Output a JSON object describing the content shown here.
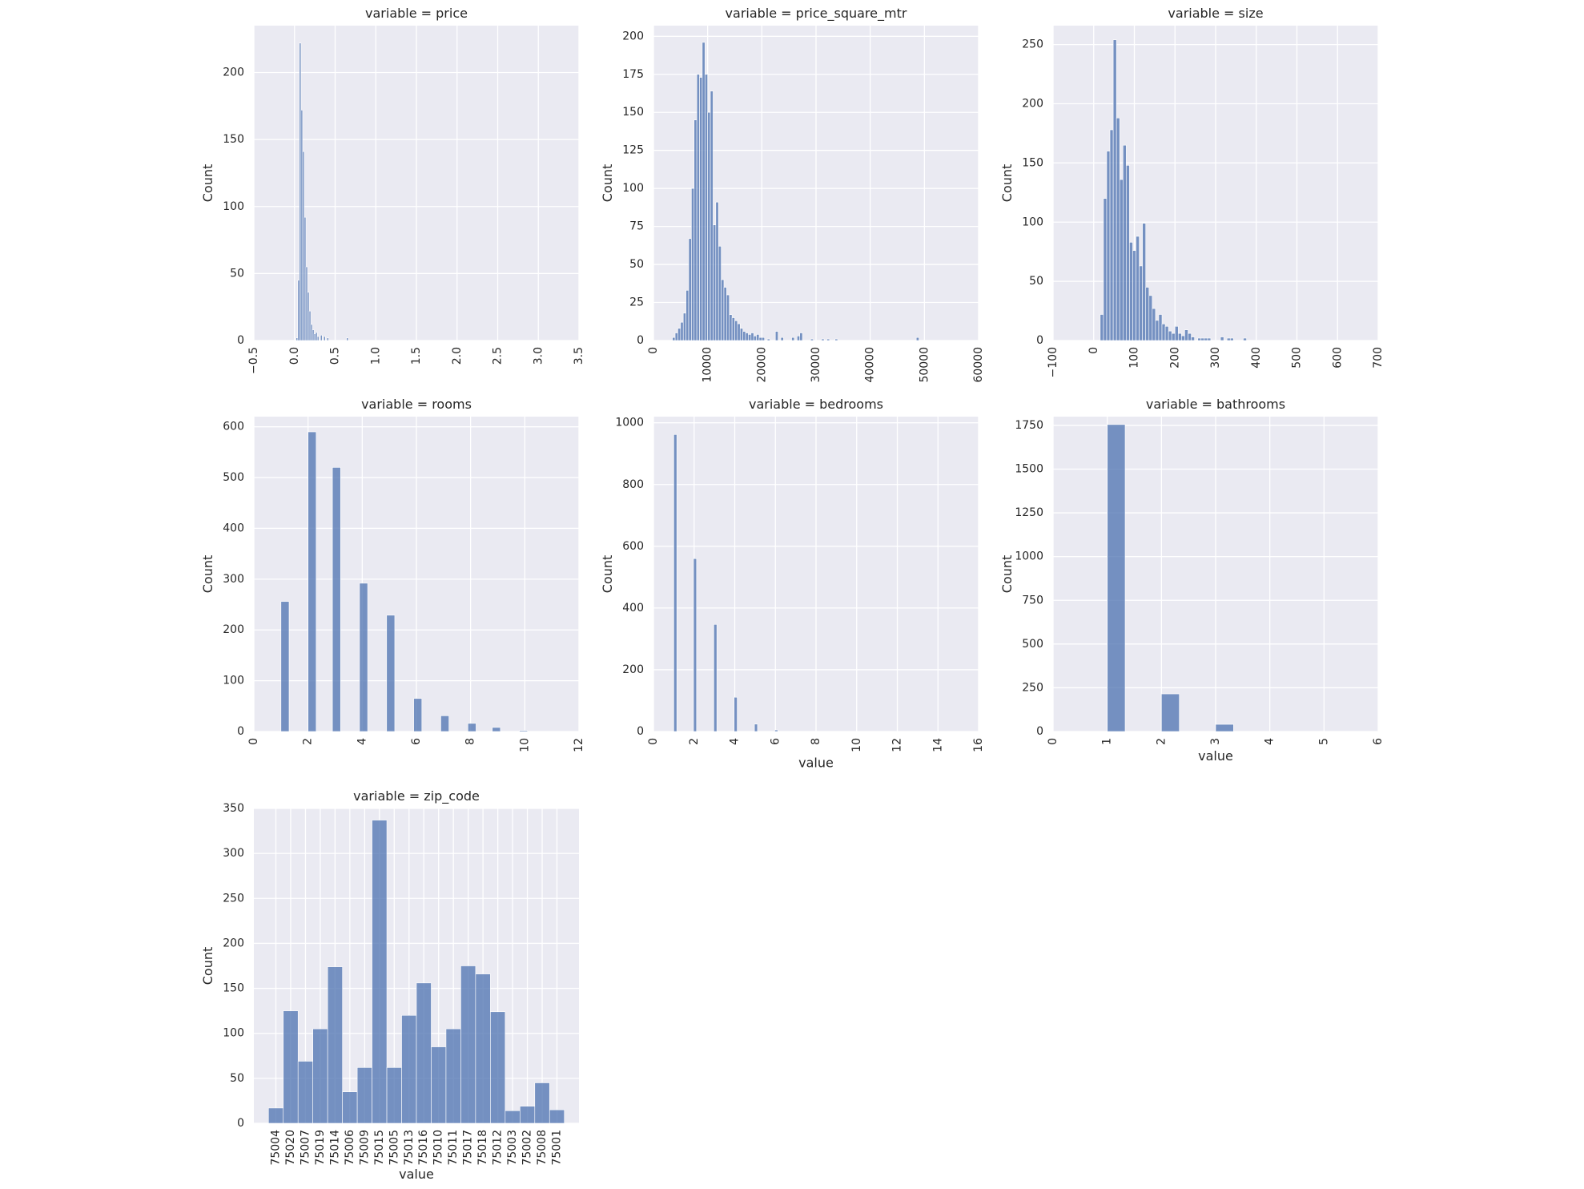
{
  "chart_data": [
    {
      "type": "histogram",
      "title": "variable = price",
      "xlabel": "",
      "ylabel": "Count",
      "xlim": [
        -0.5,
        3.5
      ],
      "ylim": [
        0,
        235
      ],
      "x_ticks": [
        "−0.5",
        "0.0",
        "0.5",
        "1.0",
        "1.5",
        "2.0",
        "2.5",
        "3.0",
        "3.5"
      ],
      "y_ticks": [
        "0",
        "50",
        "100",
        "150",
        "200"
      ],
      "grid": true,
      "bins": [
        {
          "x0": 0.02,
          "x1": 0.04,
          "count": 2
        },
        {
          "x0": 0.04,
          "x1": 0.06,
          "count": 45
        },
        {
          "x0": 0.06,
          "x1": 0.08,
          "count": 222
        },
        {
          "x0": 0.08,
          "x1": 0.1,
          "count": 172
        },
        {
          "x0": 0.1,
          "x1": 0.12,
          "count": 141
        },
        {
          "x0": 0.12,
          "x1": 0.14,
          "count": 92
        },
        {
          "x0": 0.14,
          "x1": 0.16,
          "count": 55
        },
        {
          "x0": 0.16,
          "x1": 0.18,
          "count": 36
        },
        {
          "x0": 0.18,
          "x1": 0.2,
          "count": 22
        },
        {
          "x0": 0.2,
          "x1": 0.22,
          "count": 12
        },
        {
          "x0": 0.22,
          "x1": 0.24,
          "count": 8
        },
        {
          "x0": 0.24,
          "x1": 0.26,
          "count": 5
        },
        {
          "x0": 0.26,
          "x1": 0.28,
          "count": 6
        },
        {
          "x0": 0.28,
          "x1": 0.3,
          "count": 3
        },
        {
          "x0": 0.32,
          "x1": 0.34,
          "count": 4
        },
        {
          "x0": 0.36,
          "x1": 0.38,
          "count": 3
        },
        {
          "x0": 0.4,
          "x1": 0.42,
          "count": 2
        },
        {
          "x0": 0.64,
          "x1": 0.66,
          "count": 2
        }
      ]
    },
    {
      "type": "histogram",
      "title": "variable = price_square_mtr",
      "xlabel": "",
      "ylabel": "Count",
      "xlim": [
        0,
        60000
      ],
      "ylim": [
        0,
        207
      ],
      "x_ticks": [
        "0",
        "10000",
        "20000",
        "30000",
        "40000",
        "50000",
        "60000"
      ],
      "y_ticks": [
        "0",
        "25",
        "50",
        "75",
        "100",
        "125",
        "150",
        "175",
        "200"
      ],
      "grid": true,
      "bins": [
        {
          "x0": 3500,
          "x1": 4000,
          "count": 2
        },
        {
          "x0": 4000,
          "x1": 4500,
          "count": 5
        },
        {
          "x0": 4500,
          "x1": 5000,
          "count": 8
        },
        {
          "x0": 5000,
          "x1": 5500,
          "count": 12
        },
        {
          "x0": 5500,
          "x1": 6000,
          "count": 18
        },
        {
          "x0": 6000,
          "x1": 6500,
          "count": 33
        },
        {
          "x0": 6500,
          "x1": 7000,
          "count": 67
        },
        {
          "x0": 7000,
          "x1": 7500,
          "count": 100
        },
        {
          "x0": 7500,
          "x1": 8000,
          "count": 145
        },
        {
          "x0": 8000,
          "x1": 8500,
          "count": 175
        },
        {
          "x0": 8500,
          "x1": 9000,
          "count": 173
        },
        {
          "x0": 9000,
          "x1": 9500,
          "count": 196
        },
        {
          "x0": 9500,
          "x1": 10000,
          "count": 175
        },
        {
          "x0": 10000,
          "x1": 10500,
          "count": 150
        },
        {
          "x0": 10500,
          "x1": 11000,
          "count": 164
        },
        {
          "x0": 11000,
          "x1": 11500,
          "count": 76
        },
        {
          "x0": 11500,
          "x1": 12000,
          "count": 91
        },
        {
          "x0": 12000,
          "x1": 12500,
          "count": 62
        },
        {
          "x0": 12500,
          "x1": 13000,
          "count": 40
        },
        {
          "x0": 13000,
          "x1": 13500,
          "count": 35
        },
        {
          "x0": 13500,
          "x1": 14000,
          "count": 30
        },
        {
          "x0": 14000,
          "x1": 14500,
          "count": 17
        },
        {
          "x0": 14500,
          "x1": 15000,
          "count": 15
        },
        {
          "x0": 15000,
          "x1": 15500,
          "count": 13
        },
        {
          "x0": 15500,
          "x1": 16000,
          "count": 11
        },
        {
          "x0": 16000,
          "x1": 16500,
          "count": 8
        },
        {
          "x0": 16500,
          "x1": 17000,
          "count": 6
        },
        {
          "x0": 17000,
          "x1": 17500,
          "count": 5
        },
        {
          "x0": 17500,
          "x1": 18000,
          "count": 4
        },
        {
          "x0": 18000,
          "x1": 18500,
          "count": 5
        },
        {
          "x0": 18500,
          "x1": 19000,
          "count": 3
        },
        {
          "x0": 19000,
          "x1": 19500,
          "count": 4
        },
        {
          "x0": 19500,
          "x1": 20000,
          "count": 2
        },
        {
          "x0": 20000,
          "x1": 20500,
          "count": 2
        },
        {
          "x0": 21000,
          "x1": 21500,
          "count": 1
        },
        {
          "x0": 22500,
          "x1": 23000,
          "count": 6
        },
        {
          "x0": 23500,
          "x1": 24000,
          "count": 2
        },
        {
          "x0": 25500,
          "x1": 26000,
          "count": 2
        },
        {
          "x0": 26500,
          "x1": 27000,
          "count": 3
        },
        {
          "x0": 27000,
          "x1": 27500,
          "count": 5
        },
        {
          "x0": 29000,
          "x1": 29500,
          "count": 1
        },
        {
          "x0": 31000,
          "x1": 31500,
          "count": 1
        },
        {
          "x0": 32000,
          "x1": 32500,
          "count": 1
        },
        {
          "x0": 33500,
          "x1": 34000,
          "count": 1
        },
        {
          "x0": 48500,
          "x1": 49000,
          "count": 2
        }
      ]
    },
    {
      "type": "histogram",
      "title": "variable = size",
      "xlabel": "",
      "ylabel": "Count",
      "xlim": [
        -100,
        700
      ],
      "ylim": [
        0,
        266
      ],
      "x_ticks": [
        "−100",
        "0",
        "100",
        "200",
        "300",
        "400",
        "500",
        "600",
        "700"
      ],
      "y_ticks": [
        "0",
        "50",
        "100",
        "150",
        "200",
        "250"
      ],
      "grid": true,
      "bins": [
        {
          "x0": 16,
          "x1": 24,
          "count": 22
        },
        {
          "x0": 24,
          "x1": 32,
          "count": 120
        },
        {
          "x0": 32,
          "x1": 40,
          "count": 160
        },
        {
          "x0": 40,
          "x1": 48,
          "count": 178
        },
        {
          "x0": 48,
          "x1": 56,
          "count": 254
        },
        {
          "x0": 56,
          "x1": 64,
          "count": 188
        },
        {
          "x0": 64,
          "x1": 72,
          "count": 136
        },
        {
          "x0": 72,
          "x1": 80,
          "count": 165
        },
        {
          "x0": 80,
          "x1": 88,
          "count": 148
        },
        {
          "x0": 88,
          "x1": 96,
          "count": 83
        },
        {
          "x0": 96,
          "x1": 104,
          "count": 76
        },
        {
          "x0": 104,
          "x1": 112,
          "count": 88
        },
        {
          "x0": 112,
          "x1": 120,
          "count": 63
        },
        {
          "x0": 120,
          "x1": 128,
          "count": 99
        },
        {
          "x0": 128,
          "x1": 136,
          "count": 45
        },
        {
          "x0": 136,
          "x1": 144,
          "count": 38
        },
        {
          "x0": 144,
          "x1": 152,
          "count": 27
        },
        {
          "x0": 152,
          "x1": 160,
          "count": 17
        },
        {
          "x0": 160,
          "x1": 168,
          "count": 22
        },
        {
          "x0": 168,
          "x1": 176,
          "count": 14
        },
        {
          "x0": 176,
          "x1": 184,
          "count": 12
        },
        {
          "x0": 184,
          "x1": 192,
          "count": 8
        },
        {
          "x0": 192,
          "x1": 200,
          "count": 6
        },
        {
          "x0": 200,
          "x1": 208,
          "count": 12
        },
        {
          "x0": 208,
          "x1": 216,
          "count": 6
        },
        {
          "x0": 216,
          "x1": 224,
          "count": 4
        },
        {
          "x0": 224,
          "x1": 232,
          "count": 9
        },
        {
          "x0": 232,
          "x1": 240,
          "count": 6
        },
        {
          "x0": 240,
          "x1": 248,
          "count": 3
        },
        {
          "x0": 256,
          "x1": 264,
          "count": 2
        },
        {
          "x0": 264,
          "x1": 272,
          "count": 2
        },
        {
          "x0": 272,
          "x1": 280,
          "count": 2
        },
        {
          "x0": 280,
          "x1": 288,
          "count": 2
        },
        {
          "x0": 312,
          "x1": 320,
          "count": 3
        },
        {
          "x0": 328,
          "x1": 336,
          "count": 2
        },
        {
          "x0": 336,
          "x1": 344,
          "count": 2
        },
        {
          "x0": 368,
          "x1": 376,
          "count": 2
        }
      ]
    },
    {
      "type": "histogram",
      "title": "variable = rooms",
      "xlabel": "",
      "ylabel": "Count",
      "xlim": [
        0,
        12
      ],
      "ylim": [
        0,
        620
      ],
      "x_ticks": [
        "0",
        "2",
        "4",
        "6",
        "8",
        "10",
        "12"
      ],
      "y_ticks": [
        "0",
        "100",
        "200",
        "300",
        "400",
        "500",
        "600"
      ],
      "grid": true,
      "bins": [
        {
          "x0": 1.0,
          "x1": 1.3,
          "count": 256
        },
        {
          "x0": 2.0,
          "x1": 2.3,
          "count": 590
        },
        {
          "x0": 2.9,
          "x1": 3.2,
          "count": 520
        },
        {
          "x0": 3.9,
          "x1": 4.2,
          "count": 292
        },
        {
          "x0": 4.9,
          "x1": 5.2,
          "count": 229
        },
        {
          "x0": 5.9,
          "x1": 6.2,
          "count": 65
        },
        {
          "x0": 6.9,
          "x1": 7.2,
          "count": 31
        },
        {
          "x0": 7.9,
          "x1": 8.2,
          "count": 16
        },
        {
          "x0": 8.8,
          "x1": 9.1,
          "count": 8
        },
        {
          "x0": 9.8,
          "x1": 10.1,
          "count": 2
        }
      ]
    },
    {
      "type": "histogram",
      "title": "variable = bedrooms",
      "xlabel": "value",
      "ylabel": "Count",
      "xlim": [
        0,
        16
      ],
      "ylim": [
        0,
        1020
      ],
      "x_ticks": [
        "0",
        "2",
        "4",
        "6",
        "8",
        "10",
        "12",
        "14",
        "16"
      ],
      "y_ticks": [
        "0",
        "200",
        "400",
        "600",
        "800",
        "1000"
      ],
      "grid": true,
      "bins": [
        {
          "x0": 1.0,
          "x1": 1.15,
          "count": 962
        },
        {
          "x0": 1.97,
          "x1": 2.12,
          "count": 560
        },
        {
          "x0": 2.97,
          "x1": 3.12,
          "count": 347
        },
        {
          "x0": 3.97,
          "x1": 4.12,
          "count": 111
        },
        {
          "x0": 4.97,
          "x1": 5.12,
          "count": 24
        },
        {
          "x0": 5.97,
          "x1": 6.12,
          "count": 5
        }
      ]
    },
    {
      "type": "histogram",
      "title": "variable = bathrooms",
      "xlabel": "value",
      "ylabel": "Count",
      "xlim": [
        0,
        6
      ],
      "ylim": [
        0,
        1800
      ],
      "x_ticks": [
        "0",
        "1",
        "2",
        "3",
        "4",
        "5",
        "6"
      ],
      "y_ticks": [
        "0",
        "250",
        "500",
        "750",
        "1000",
        "1250",
        "1500",
        "1750"
      ],
      "grid": true,
      "bins": [
        {
          "x0": 1.0,
          "x1": 1.33,
          "count": 1755
        },
        {
          "x0": 2.0,
          "x1": 2.33,
          "count": 215
        },
        {
          "x0": 3.0,
          "x1": 3.33,
          "count": 41
        }
      ]
    },
    {
      "type": "bar",
      "title": "variable = zip_code",
      "xlabel": "value",
      "ylabel": "Count",
      "ylim": [
        0,
        350
      ],
      "y_ticks": [
        "0",
        "50",
        "100",
        "150",
        "200",
        "250",
        "300",
        "350"
      ],
      "grid": true,
      "categories": [
        "75004",
        "75020",
        "75007",
        "75019",
        "75014",
        "75006",
        "75009",
        "75015",
        "75005",
        "75013",
        "75016",
        "75010",
        "75011",
        "75017",
        "75018",
        "75012",
        "75003",
        "75002",
        "75008",
        "75001"
      ],
      "values": [
        17,
        125,
        69,
        105,
        174,
        35,
        62,
        337,
        62,
        120,
        156,
        85,
        105,
        175,
        166,
        124,
        14,
        19,
        45,
        15
      ]
    }
  ]
}
